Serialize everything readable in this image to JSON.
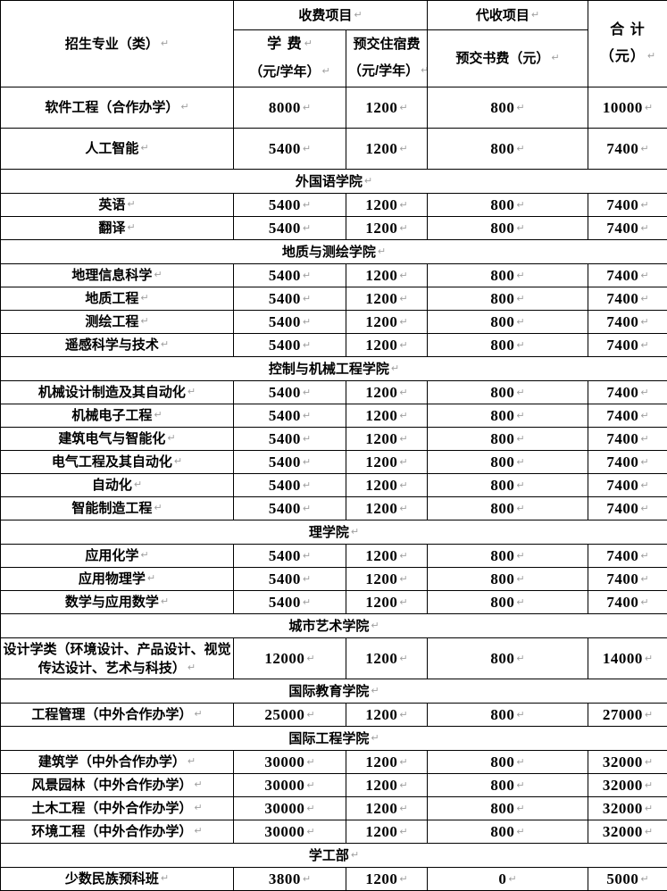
{
  "pilcrow": "↵",
  "colors": {
    "border": "#000000",
    "text": "#000000",
    "paragraph_mark": "#a0a0a0",
    "background": "#ffffff"
  },
  "table": {
    "header": {
      "major": "招生专业（类）",
      "fee_group": "收费项目",
      "collect_group": "代收项目",
      "total_line1": "合 计",
      "total_line2": "（元）",
      "tuition_line1": "学 费",
      "tuition_line2": "（元/学年）",
      "dorm_line1": "预交住宿费",
      "dorm_line2": "（元/学年）",
      "book": "预交书费（元）"
    },
    "rows": [
      {
        "type": "data",
        "major": "软件工程（合作办学）",
        "tuition": "8000",
        "dorm": "1200",
        "book": "800",
        "total": "10000",
        "tall": true
      },
      {
        "type": "data",
        "major": "人工智能",
        "tuition": "5400",
        "dorm": "1200",
        "book": "800",
        "total": "7400",
        "tall": true
      },
      {
        "type": "section",
        "label": "外国语学院"
      },
      {
        "type": "data",
        "major": "英语",
        "tuition": "5400",
        "dorm": "1200",
        "book": "800",
        "total": "7400"
      },
      {
        "type": "data",
        "major": "翻译",
        "tuition": "5400",
        "dorm": "1200",
        "book": "800",
        "total": "7400"
      },
      {
        "type": "section",
        "label": "地质与测绘学院"
      },
      {
        "type": "data",
        "major": "地理信息科学",
        "tuition": "5400",
        "dorm": "1200",
        "book": "800",
        "total": "7400"
      },
      {
        "type": "data",
        "major": "地质工程",
        "tuition": "5400",
        "dorm": "1200",
        "book": "800",
        "total": "7400"
      },
      {
        "type": "data",
        "major": "测绘工程",
        "tuition": "5400",
        "dorm": "1200",
        "book": "800",
        "total": "7400"
      },
      {
        "type": "data",
        "major": "遥感科学与技术",
        "tuition": "5400",
        "dorm": "1200",
        "book": "800",
        "total": "7400"
      },
      {
        "type": "section",
        "label": "控制与机械工程学院"
      },
      {
        "type": "data",
        "major": "机械设计制造及其自动化",
        "tuition": "5400",
        "dorm": "1200",
        "book": "800",
        "total": "7400"
      },
      {
        "type": "data",
        "major": "机械电子工程",
        "tuition": "5400",
        "dorm": "1200",
        "book": "800",
        "total": "7400"
      },
      {
        "type": "data",
        "major": "建筑电气与智能化",
        "tuition": "5400",
        "dorm": "1200",
        "book": "800",
        "total": "7400"
      },
      {
        "type": "data",
        "major": "电气工程及其自动化",
        "tuition": "5400",
        "dorm": "1200",
        "book": "800",
        "total": "7400"
      },
      {
        "type": "data",
        "major": "自动化",
        "tuition": "5400",
        "dorm": "1200",
        "book": "800",
        "total": "7400"
      },
      {
        "type": "data",
        "major": "智能制造工程",
        "tuition": "5400",
        "dorm": "1200",
        "book": "800",
        "total": "7400"
      },
      {
        "type": "section",
        "label": "理学院"
      },
      {
        "type": "data",
        "major": "应用化学",
        "tuition": "5400",
        "dorm": "1200",
        "book": "800",
        "total": "7400"
      },
      {
        "type": "data",
        "major": "应用物理学",
        "tuition": "5400",
        "dorm": "1200",
        "book": "800",
        "total": "7400"
      },
      {
        "type": "data",
        "major": "数学与应用数学",
        "tuition": "5400",
        "dorm": "1200",
        "book": "800",
        "total": "7400"
      },
      {
        "type": "section",
        "label": "城市艺术学院"
      },
      {
        "type": "data",
        "major": "设计学类（环境设计、产品设计、视觉传达设计、艺术与科技）",
        "tuition": "12000",
        "dorm": "1200",
        "book": "800",
        "total": "14000",
        "tall": true
      },
      {
        "type": "section",
        "label": "国际教育学院"
      },
      {
        "type": "data",
        "major": "工程管理（中外合作办学）",
        "tuition": "25000",
        "dorm": "1200",
        "book": "800",
        "total": "27000"
      },
      {
        "type": "section",
        "label": "国际工程学院"
      },
      {
        "type": "data",
        "major": "建筑学（中外合作办学）",
        "tuition": "30000",
        "dorm": "1200",
        "book": "800",
        "total": "32000"
      },
      {
        "type": "data",
        "major": "风景园林（中外合作办学）",
        "tuition": "30000",
        "dorm": "1200",
        "book": "800",
        "total": "32000"
      },
      {
        "type": "data",
        "major": "土木工程（中外合作办学）",
        "tuition": "30000",
        "dorm": "1200",
        "book": "800",
        "total": "32000"
      },
      {
        "type": "data",
        "major": "环境工程（中外合作办学）",
        "tuition": "30000",
        "dorm": "1200",
        "book": "800",
        "total": "32000"
      },
      {
        "type": "section",
        "label": "学工部"
      },
      {
        "type": "data",
        "major": "少数民族预科班",
        "tuition": "3800",
        "dorm": "1200",
        "book": "0",
        "total": "5000"
      }
    ]
  }
}
